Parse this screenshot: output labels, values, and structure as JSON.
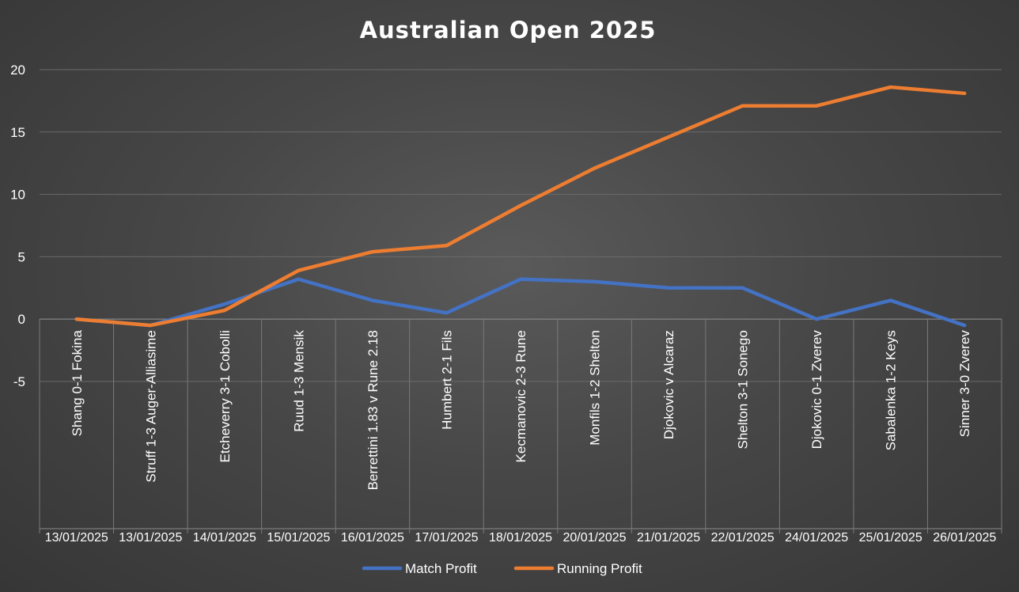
{
  "chart_data": {
    "type": "line",
    "title": "Australian Open 2025",
    "categories": [
      "Shang 0-1 Fokina",
      "Struff 1-3 Auger-Alliasime",
      "Etcheverry 3-1 Cobolli",
      "Ruud 1-3 Mensik",
      "Berrettini 1.83 v Rune 2.18",
      "Humbert 2-1 Fils",
      "Kecmanovic 2-3 Rune",
      "Monfils 1-2 Shelton",
      "Djokovic v Alcaraz",
      "Shelton 3-1 Sonego",
      "Djokovic 0-1 Zverev",
      "Sabalenka 1-2 Keys",
      "Sinner 3-0 Zverev"
    ],
    "dates": [
      "13/01/2025",
      "13/01/2025",
      "14/01/2025",
      "15/01/2025",
      "16/01/2025",
      "17/01/2025",
      "18/01/2025",
      "20/01/2025",
      "21/01/2025",
      "22/01/2025",
      "24/01/2025",
      "25/01/2025",
      "26/01/2025"
    ],
    "series": [
      {
        "name": "Match Profit",
        "color": "#4472c4",
        "values": [
          0,
          -0.5,
          1.2,
          3.2,
          1.5,
          0.5,
          3.2,
          3.0,
          2.5,
          2.5,
          0,
          1.5,
          -0.5
        ]
      },
      {
        "name": "Running Profit",
        "color": "#ed7d31",
        "values": [
          0,
          -0.5,
          0.7,
          3.9,
          5.4,
          5.9,
          9.1,
          12.1,
          14.6,
          17.1,
          17.1,
          18.6,
          18.1
        ]
      }
    ],
    "ylim": [
      -5,
      20
    ],
    "yticks": [
      -5,
      0,
      5,
      10,
      15,
      20
    ],
    "grid": true,
    "legend": "bottom"
  }
}
